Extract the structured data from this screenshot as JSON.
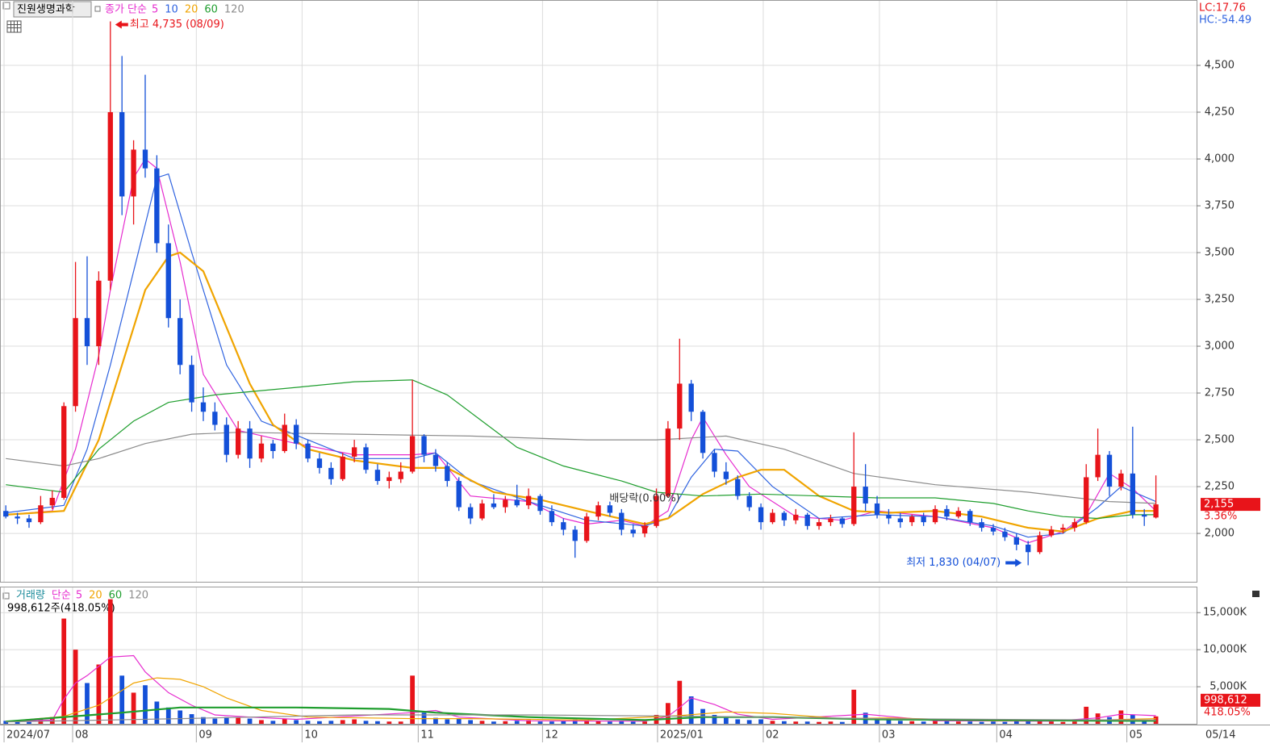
{
  "chart_data": [
    {
      "type": "candlestick",
      "title": "진원생명과학",
      "legend_title": "종가 단순",
      "up_color": "#e8141a",
      "down_color": "#1450d8",
      "open": [
        2120,
        2090,
        2080,
        2060,
        2150,
        2190,
        2680,
        3150,
        3000,
        3350,
        4250,
        3800,
        4050,
        3950,
        3550,
        3150,
        2900,
        2700,
        2650,
        2580,
        2420,
        2560,
        2400,
        2480,
        2440,
        2580,
        2480,
        2400,
        2350,
        2290,
        2410,
        2460,
        2340,
        2280,
        2290,
        2330,
        2520,
        2420,
        2360,
        2280,
        2140,
        2080,
        2160,
        2140,
        2180,
        2150,
        2200,
        2120,
        2060,
        2020,
        1960,
        2090,
        2150,
        2110,
        2020,
        2000,
        2040,
        2200,
        2560,
        2800,
        2650,
        2430,
        2330,
        2290,
        2200,
        2140,
        2060,
        2110,
        2070,
        2100,
        2040,
        2060,
        2080,
        2050,
        2250,
        2160,
        2100,
        2080,
        2060,
        2090,
        2060,
        2130,
        2090,
        2120,
        2060,
        2030,
        2010,
        1980,
        1940,
        1900,
        1990,
        2020,
        2030,
        2060,
        2300,
        2420,
        2250,
        2320,
        2100,
        2085
      ],
      "high": [
        2150,
        2110,
        2100,
        2200,
        2230,
        2700,
        3450,
        3480,
        3400,
        4735,
        4550,
        4100,
        4450,
        4020,
        3650,
        3250,
        2950,
        2780,
        2700,
        2620,
        2600,
        2600,
        2520,
        2500,
        2640,
        2610,
        2500,
        2430,
        2380,
        2430,
        2500,
        2480,
        2370,
        2330,
        2380,
        2820,
        2530,
        2450,
        2380,
        2300,
        2160,
        2180,
        2210,
        2200,
        2260,
        2240,
        2210,
        2150,
        2080,
        2040,
        2110,
        2170,
        2170,
        2130,
        2050,
        2060,
        2240,
        2600,
        3040,
        2820,
        2660,
        2450,
        2380,
        2310,
        2220,
        2160,
        2130,
        2120,
        2130,
        2110,
        2080,
        2100,
        2090,
        2540,
        2370,
        2200,
        2130,
        2110,
        2100,
        2110,
        2150,
        2150,
        2140,
        2130,
        2080,
        2050,
        2030,
        2000,
        1960,
        2010,
        2040,
        2050,
        2080,
        2370,
        2560,
        2440,
        2340,
        2570,
        2130,
        2310
      ],
      "low": [
        2080,
        2050,
        2030,
        2050,
        2130,
        2180,
        2650,
        2900,
        2900,
        3300,
        3700,
        3650,
        3900,
        3500,
        3100,
        2850,
        2650,
        2600,
        2550,
        2380,
        2400,
        2350,
        2380,
        2400,
        2430,
        2450,
        2380,
        2320,
        2260,
        2280,
        2380,
        2320,
        2260,
        2240,
        2270,
        2320,
        2380,
        2330,
        2250,
        2120,
        2050,
        2070,
        2130,
        2110,
        2140,
        2130,
        2100,
        2040,
        1990,
        1870,
        1950,
        2070,
        2090,
        1990,
        1980,
        1980,
        2030,
        2190,
        2500,
        2600,
        2400,
        2300,
        2260,
        2180,
        2120,
        2020,
        2050,
        2040,
        2050,
        2020,
        2020,
        2040,
        2030,
        2040,
        2120,
        2080,
        2050,
        2030,
        2040,
        2040,
        2050,
        2070,
        2080,
        2040,
        2010,
        1990,
        1960,
        1910,
        1830,
        1890,
        1980,
        2000,
        2010,
        2050,
        2280,
        2200,
        2230,
        2080,
        2040,
        2080
      ],
      "close": [
        2090,
        2080,
        2060,
        2150,
        2190,
        2680,
        3150,
        3000,
        3350,
        4250,
        3800,
        4050,
        3950,
        3550,
        3150,
        2900,
        2700,
        2650,
        2580,
        2420,
        2560,
        2400,
        2480,
        2440,
        2580,
        2480,
        2400,
        2350,
        2290,
        2410,
        2460,
        2340,
        2280,
        2300,
        2330,
        2520,
        2420,
        2360,
        2280,
        2140,
        2080,
        2160,
        2140,
        2180,
        2150,
        2200,
        2120,
        2060,
        2020,
        1960,
        2090,
        2150,
        2110,
        2020,
        2000,
        2040,
        2200,
        2560,
        2800,
        2650,
        2430,
        2330,
        2290,
        2200,
        2140,
        2060,
        2110,
        2070,
        2100,
        2040,
        2060,
        2080,
        2050,
        2250,
        2160,
        2100,
        2080,
        2060,
        2090,
        2060,
        2130,
        2090,
        2120,
        2060,
        2030,
        2010,
        1980,
        1940,
        1900,
        1990,
        2020,
        2030,
        2060,
        2300,
        2420,
        2250,
        2320,
        2100,
        2090,
        2155
      ],
      "series": [
        {
          "name": "5",
          "color": "#e62ccf",
          "x": [
            0,
            4,
            6,
            8,
            9,
            11,
            12,
            13,
            15,
            17,
            20,
            25,
            30,
            35,
            37,
            40,
            45,
            48,
            50,
            53,
            55,
            57,
            59,
            60,
            62,
            64,
            68,
            72,
            75,
            80,
            85,
            88,
            91,
            93,
            95,
            97,
            99
          ],
          "values": [
            2100,
            2120,
            2450,
            2950,
            3300,
            3900,
            4000,
            3950,
            3450,
            2850,
            2550,
            2480,
            2420,
            2420,
            2430,
            2200,
            2170,
            2080,
            2050,
            2070,
            2040,
            2120,
            2500,
            2620,
            2420,
            2250,
            2090,
            2070,
            2120,
            2090,
            2030,
            1950,
            2010,
            2100,
            2320,
            2240,
            2120
          ]
        },
        {
          "name": "10",
          "color": "#2f63e0",
          "x": [
            0,
            5,
            7,
            9,
            11,
            13,
            14,
            16,
            19,
            22,
            26,
            30,
            35,
            37,
            40,
            45,
            50,
            55,
            57,
            59,
            61,
            63,
            66,
            70,
            75,
            80,
            85,
            88,
            91,
            94,
            96,
            99
          ],
          "values": [
            2110,
            2150,
            2450,
            2900,
            3400,
            3900,
            3920,
            3500,
            2900,
            2600,
            2500,
            2400,
            2400,
            2430,
            2280,
            2170,
            2070,
            2040,
            2080,
            2300,
            2450,
            2440,
            2250,
            2080,
            2100,
            2090,
            2040,
            1980,
            2000,
            2140,
            2250,
            2170
          ]
        },
        {
          "name": "20",
          "color": "#f0a400",
          "x": [
            0,
            5,
            8,
            10,
            12,
            14,
            15,
            17,
            19,
            21,
            23,
            26,
            30,
            35,
            38,
            42,
            46,
            50,
            55,
            57,
            60,
            63,
            65,
            67,
            70,
            73,
            76,
            80,
            84,
            88,
            91,
            94,
            97,
            99
          ],
          "values": [
            2100,
            2120,
            2500,
            2900,
            3300,
            3480,
            3500,
            3400,
            3100,
            2800,
            2580,
            2450,
            2390,
            2350,
            2350,
            2220,
            2180,
            2120,
            2050,
            2080,
            2210,
            2300,
            2340,
            2340,
            2200,
            2120,
            2110,
            2120,
            2090,
            2030,
            2010,
            2080,
            2120,
            2120
          ]
        },
        {
          "name": "60",
          "color": "#1f9e2e",
          "x": [
            0,
            5,
            8,
            11,
            14,
            18,
            25,
            30,
            35,
            38,
            41,
            44,
            48,
            53,
            56,
            60,
            65,
            70,
            75,
            80,
            85,
            88,
            91,
            94,
            97,
            99
          ],
          "values": [
            2260,
            2220,
            2450,
            2600,
            2700,
            2740,
            2780,
            2810,
            2820,
            2740,
            2600,
            2460,
            2360,
            2280,
            2220,
            2200,
            2210,
            2200,
            2190,
            2190,
            2160,
            2120,
            2090,
            2080,
            2100,
            2100
          ]
        },
        {
          "name": "120",
          "color": "#8c8c8c",
          "x": [
            0,
            5,
            8,
            12,
            16,
            20,
            30,
            40,
            50,
            56,
            62,
            67,
            73,
            80,
            88,
            95,
            99
          ],
          "values": [
            2400,
            2360,
            2400,
            2480,
            2530,
            2540,
            2530,
            2520,
            2500,
            2500,
            2520,
            2450,
            2320,
            2260,
            2220,
            2170,
            2160
          ]
        }
      ],
      "ylim": [
        1746,
        4763
      ],
      "yticks": [
        {
          "value": 2000,
          "label": "2,000"
        },
        {
          "value": 2250,
          "label": "2,250"
        },
        {
          "value": 2500,
          "label": "2,500"
        },
        {
          "value": 2750,
          "label": "2,750"
        },
        {
          "value": 3000,
          "label": "3,000"
        },
        {
          "value": 3250,
          "label": "3,250"
        },
        {
          "value": 3500,
          "label": "3,500"
        },
        {
          "value": 3750,
          "label": "3,750"
        },
        {
          "value": 4000,
          "label": "4,000"
        },
        {
          "value": 4250,
          "label": "4,250"
        },
        {
          "value": 4500,
          "label": "4,500"
        }
      ],
      "xlim": [
        -0.5,
        102.5
      ],
      "xticks": [
        {
          "value": -0.15,
          "label": "2024/07"
        },
        {
          "value": 5.75,
          "label": "08"
        },
        {
          "value": 16.4,
          "label": "09"
        },
        {
          "value": 25.5,
          "label": "10"
        },
        {
          "value": 35.5,
          "label": "11"
        },
        {
          "value": 46.2,
          "label": "12"
        },
        {
          "value": 56.1,
          "label": "2025/01"
        },
        {
          "value": 65.2,
          "label": "02"
        },
        {
          "value": 75.2,
          "label": "03"
        },
        {
          "value": 85.3,
          "label": "04"
        },
        {
          "value": 96.5,
          "label": "05"
        }
      ],
      "last_date": "05/14",
      "high_note": "최고 4,735 (08/09)",
      "low_note": "최저 1,830 (04/07)",
      "event_note": "배당락(0.00%)",
      "lc": "LC:17.76",
      "hc": "HC:-54.49",
      "last_price": {
        "value": 2155,
        "label": "2,155"
      },
      "change": "3.36%",
      "grid": true
    },
    {
      "type": "volume",
      "title": "거래량",
      "legend_title": "단순",
      "info": "998,612주(418.05%)",
      "values": [
        400,
        300,
        250,
        600,
        900,
        14200,
        10000,
        5500,
        8000,
        16800,
        6500,
        4200,
        5200,
        3000,
        2200,
        1800,
        1300,
        900,
        700,
        900,
        800,
        700,
        500,
        400,
        700,
        500,
        400,
        350,
        400,
        500,
        600,
        400,
        350,
        300,
        300,
        6500,
        1500,
        800,
        600,
        700,
        500,
        400,
        300,
        350,
        400,
        500,
        300,
        300,
        400,
        600,
        500,
        400,
        300,
        400,
        300,
        300,
        1200,
        2800,
        5800,
        3700,
        2000,
        1200,
        800,
        600,
        500,
        600,
        400,
        350,
        300,
        300,
        250,
        300,
        250,
        4600,
        1500,
        700,
        500,
        400,
        350,
        300,
        400,
        350,
        300,
        300,
        250,
        300,
        250,
        400,
        500,
        400,
        300,
        250,
        300,
        2300,
        1400,
        900,
        1800,
        1200,
        500,
        998.612
      ],
      "series": [
        {
          "name": "5",
          "color": "#e62ccf",
          "x": [
            0,
            4,
            5,
            6,
            7,
            9,
            11,
            12,
            14,
            16,
            18,
            21,
            25,
            35,
            37,
            39,
            45,
            55,
            57,
            58,
            59,
            61,
            63,
            66,
            73,
            74,
            76,
            80,
            90,
            94,
            96,
            99
          ],
          "values": [
            350,
            500,
            3300,
            5500,
            6500,
            9000,
            9200,
            7000,
            4200,
            2500,
            1200,
            900,
            600,
            1500,
            1800,
            900,
            400,
            350,
            1000,
            2200,
            3500,
            2600,
            1300,
            600,
            1200,
            1300,
            1000,
            400,
            350,
            800,
            1300,
            1100
          ]
        },
        {
          "name": "20",
          "color": "#f0a400",
          "x": [
            0,
            5,
            8,
            11,
            13,
            15,
            17,
            19,
            22,
            26,
            35,
            40,
            50,
            58,
            62,
            66,
            72,
            76,
            85,
            94,
            99
          ],
          "values": [
            300,
            1000,
            2500,
            5500,
            6200,
            6000,
            5000,
            3500,
            1800,
            900,
            700,
            700,
            500,
            1100,
            1600,
            1400,
            700,
            800,
            400,
            500,
            700
          ]
        },
        {
          "name": "60",
          "color": "#1f9e2e",
          "x": [
            0,
            10,
            15,
            25,
            33,
            37,
            45,
            55,
            60,
            66,
            75,
            85,
            95,
            99
          ],
          "values": [
            300,
            1500,
            2200,
            2200,
            2000,
            1500,
            900,
            500,
            900,
            900,
            600,
            500,
            400,
            400
          ]
        },
        {
          "name": "120",
          "color": "#8c8c8c",
          "x": [
            0,
            15,
            30,
            45,
            60,
            75,
            90,
            99
          ],
          "values": [
            250,
            700,
            1200,
            1200,
            1000,
            700,
            550,
            500
          ]
        }
      ],
      "ylim": [
        0,
        18400
      ],
      "yticks": [
        {
          "value": 5000,
          "label": "5,000K"
        },
        {
          "value": 10000,
          "label": "10,000K"
        },
        {
          "value": 15000,
          "label": "15,000K"
        }
      ],
      "xlim": [
        -0.5,
        102.5
      ],
      "last_volume": {
        "value": 998.612,
        "label": "998,612"
      },
      "ratio": "418.05%",
      "grid": true
    }
  ]
}
